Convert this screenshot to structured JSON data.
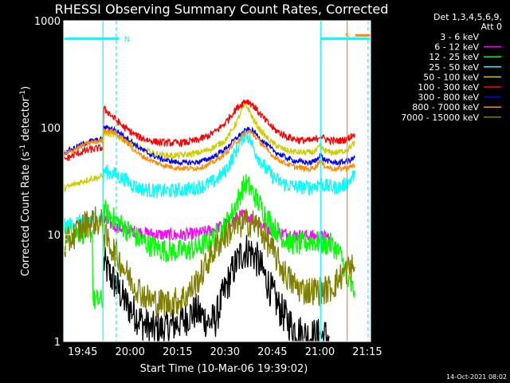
{
  "chart_data": {
    "type": "line",
    "title": "RHESSI Observing Summary Count Rates, Corrected",
    "xlabel": "Start Time (10-Mar-06 19:39:02)",
    "ylabel_parts": [
      "Corrected Count Rate (s",
      "-1",
      " detector",
      "-1",
      ")"
    ],
    "x_ticks": [
      "19:45",
      "20:00",
      "20:15",
      "20:30",
      "20:45",
      "21:00",
      "21:15"
    ],
    "y_ticks": [
      "1",
      "10",
      "100",
      "1000"
    ],
    "ylim": [
      1,
      1000
    ],
    "yscale": "log",
    "xlim_minutes": [
      0,
      97
    ],
    "x_tick_minutes": [
      5.97,
      20.97,
      35.97,
      50.97,
      65.97,
      80.97,
      95.97
    ],
    "timestamp": "14-Oct-2021 08:02",
    "legend": {
      "header": [
        "Det 1,3,4,5,6,9,",
        "Att 0"
      ],
      "entries": [
        {
          "label": "3 - 6 keV",
          "color": "#000000"
        },
        {
          "label": "6 - 12 keV",
          "color": "#ff00ff"
        },
        {
          "label": "12 - 25 keV",
          "color": "#00ff00"
        },
        {
          "label": "25 - 50 keV",
          "color": "#00ffff"
        },
        {
          "label": "50 - 100 keV",
          "color": "#cccc00"
        },
        {
          "label": "100 - 300 keV",
          "color": "#ff0000"
        },
        {
          "label": "300 - 800 keV",
          "color": "#0000ff"
        },
        {
          "label": "800 - 7000 keV",
          "color": "#ff8c00"
        },
        {
          "label": "7000 - 15000 keV",
          "color": "#808000"
        }
      ]
    },
    "flags": [
      {
        "label": "N",
        "color": "#00ffff",
        "start": 0,
        "end": 17.5,
        "level": 680
      },
      {
        "label": "S",
        "color": "#ff8c00",
        "start": 92.2,
        "end": 97,
        "level": 730
      },
      {
        "label": "",
        "color": "#00ffff",
        "start": 81.2,
        "end": 97,
        "level": 680
      }
    ],
    "vlines": [
      {
        "x": 0,
        "color": "#00ffff",
        "dashed": false
      },
      {
        "x": 12.4,
        "color": "#00ffff",
        "dashed": false
      },
      {
        "x": 16.6,
        "color": "#00ffff",
        "dashed": true
      },
      {
        "x": 81.2,
        "color": "#00ffff",
        "dashed": false
      },
      {
        "x": 89.6,
        "color": "#ff8c00",
        "dashed": false
      },
      {
        "x": 96.2,
        "color": "#00ffff",
        "dashed": true
      }
    ],
    "series": [
      {
        "name": "3 - 6 keV",
        "color": "#000000",
        "x": [
          12.6,
          14,
          16,
          18,
          20,
          22,
          24,
          26,
          28,
          30,
          32,
          34,
          36,
          38,
          40,
          42,
          44,
          46,
          48,
          50,
          52,
          54,
          56,
          58,
          60,
          62,
          64,
          66,
          68,
          70,
          72,
          74,
          76,
          78,
          80,
          82,
          84
        ],
        "y": [
          5.5,
          4.5,
          3.6,
          2.8,
          2.2,
          1.9,
          1.6,
          1.4,
          1.3,
          1.3,
          1.3,
          1.4,
          1.5,
          1.6,
          1.8,
          1.9,
          1.7,
          1.5,
          1.6,
          2.5,
          3.6,
          5,
          6.5,
          7.2,
          6.6,
          5.2,
          3.8,
          2.8,
          2.1,
          1.7,
          1.4,
          1.25,
          1.15,
          1.12,
          1.12,
          1.12,
          1.12
        ],
        "noise": 0.35
      },
      {
        "name": "6 - 12 keV",
        "color": "#ff00ff",
        "x": [
          12.6,
          15,
          18,
          21,
          24,
          27,
          30,
          33,
          36,
          39,
          42,
          45,
          48,
          51,
          54,
          56,
          57,
          58,
          60,
          63,
          66,
          69,
          72,
          75,
          78,
          81,
          84
        ],
        "y": [
          13.5,
          12.5,
          11.5,
          10.8,
          10.5,
          10.2,
          10,
          9.9,
          9.9,
          10,
          10.2,
          10.6,
          11.3,
          12.5,
          14,
          15,
          15.3,
          15,
          13.8,
          12.2,
          11,
          10.3,
          10,
          9.8,
          9.7,
          9.6,
          9.5
        ],
        "noise": 0.12
      },
      {
        "name": "12 - 25 keV",
        "color": "#00ff00",
        "x": [
          0,
          9,
          9.3,
          10,
          11,
          12.4,
          12.6,
          14,
          16,
          18,
          20,
          22,
          24,
          27,
          30,
          33,
          36,
          39,
          42,
          45,
          48,
          51,
          53,
          55,
          56.5,
          57.5,
          58.5,
          60,
          62,
          64,
          66,
          68,
          70,
          72,
          74,
          76,
          78,
          80,
          82,
          84,
          86,
          88,
          89,
          90,
          91,
          92
        ],
        "y": [
          10.5,
          10.5,
          2.4,
          2.4,
          2.4,
          2.4,
          17,
          15.5,
          14,
          12.5,
          11,
          10,
          9,
          8,
          7.4,
          7,
          7,
          7.1,
          7.5,
          8.2,
          9.5,
          12,
          15.5,
          21,
          27,
          30,
          28,
          24,
          19,
          15.2,
          12.2,
          10.2,
          9,
          8.3,
          8,
          8.2,
          8.8,
          8.5,
          8.2,
          8.2,
          7.5,
          6,
          4.5,
          3.5,
          3.2,
          3
        ],
        "noise": 0.22
      },
      {
        "name": "25 - 50 keV",
        "color": "#00ffff",
        "x": [
          0,
          4,
          8,
          12.4,
          12.6,
          14,
          16,
          18,
          20,
          22,
          24,
          27,
          30,
          33,
          36,
          39,
          42,
          45,
          48,
          51,
          53,
          55,
          56.5,
          57.5,
          58.5,
          60,
          62,
          64,
          66,
          68,
          70,
          72,
          74,
          76,
          78,
          80,
          81,
          82,
          84,
          86,
          88,
          90,
          92
        ],
        "y": [
          12,
          13,
          14,
          14.5,
          40,
          38,
          37,
          34,
          32,
          29,
          27,
          26,
          25.5,
          25.5,
          26,
          26.5,
          27.5,
          29,
          32,
          39,
          50,
          65,
          80,
          88,
          82,
          64,
          50,
          41,
          35,
          31.5,
          29.5,
          28.5,
          28,
          27.5,
          27.5,
          29,
          31,
          29,
          28,
          27.5,
          28.5,
          31,
          37
        ],
        "noise": 0.14
      },
      {
        "name": "50 - 100 keV",
        "color": "#cccc00",
        "x": [
          0,
          4,
          8,
          12.4,
          12.6,
          14,
          16,
          18,
          20,
          22,
          24,
          27,
          30,
          33,
          36,
          39,
          42,
          45,
          48,
          51,
          53,
          55,
          56.5,
          57.5,
          58.5,
          60,
          62,
          64,
          66,
          68,
          70,
          72,
          74,
          76,
          78,
          80,
          81,
          82,
          84,
          86,
          88,
          90,
          92
        ],
        "y": [
          27,
          30,
          33,
          35,
          88,
          88,
          85,
          80,
          75,
          69,
          64,
          59,
          56,
          55,
          55,
          56,
          58,
          61,
          67,
          76,
          92,
          118,
          150,
          165,
          148,
          118,
          96,
          82,
          72,
          66,
          62,
          60,
          59,
          58.5,
          58.5,
          61,
          67,
          62,
          59,
          58.5,
          60,
          64,
          72
        ],
        "noise": 0.06
      },
      {
        "name": "100 - 300 keV",
        "color": "#ff0000",
        "x": [
          0,
          4,
          8,
          12.4,
          12.6,
          14,
          16,
          18,
          20,
          22,
          24,
          27,
          30,
          33,
          36,
          39,
          42,
          45,
          48,
          51,
          53,
          55,
          57,
          58,
          59,
          60,
          62,
          64,
          66,
          68,
          70,
          72,
          74,
          76,
          78,
          80,
          81,
          82,
          84,
          86,
          88,
          90,
          92
        ],
        "y": [
          50,
          57,
          62,
          65,
          150,
          140,
          122,
          107,
          96,
          88,
          81,
          76,
          73,
          72,
          72,
          73,
          76,
          82,
          92,
          110,
          132,
          155,
          175,
          178,
          170,
          160,
          135,
          115,
          100,
          90,
          84,
          80,
          77,
          76,
          75.5,
          78,
          85,
          80,
          76,
          75,
          76,
          80,
          88
        ],
        "noise": 0.07
      },
      {
        "name": "300 - 800 keV",
        "color": "#0000ff",
        "x": [
          0,
          4,
          8,
          12.4,
          12.6,
          14,
          16,
          18,
          20,
          22,
          24,
          27,
          30,
          33,
          36,
          39,
          42,
          45,
          48,
          51,
          53,
          55,
          57,
          58,
          59,
          60,
          62,
          64,
          66,
          68,
          70,
          72,
          74,
          76,
          78,
          80,
          81,
          82,
          84,
          86,
          88,
          90,
          92
        ],
        "y": [
          58,
          66,
          74,
          78,
          100,
          100,
          96,
          88,
          80,
          72,
          64,
          57,
          52,
          49,
          47.5,
          47,
          47.5,
          50,
          55,
          63,
          72,
          82,
          92,
          96,
          95,
          92,
          80,
          70,
          62,
          57,
          53,
          50,
          48.5,
          47.5,
          47,
          50,
          57,
          51,
          48,
          47,
          47.5,
          49,
          52
        ],
        "noise": 0.05
      },
      {
        "name": "800 - 7000 keV",
        "color": "#ff8c00",
        "x": [
          0,
          4,
          8,
          12.4,
          12.6,
          14,
          16,
          18,
          20,
          22,
          24,
          27,
          30,
          33,
          36,
          39,
          42,
          45,
          48,
          51,
          53,
          55,
          57,
          58,
          59,
          60,
          62,
          64,
          66,
          68,
          70,
          72,
          74,
          76,
          78,
          80,
          81,
          82,
          84,
          86,
          88,
          90,
          92
        ],
        "y": [
          55,
          64,
          72,
          76,
          95,
          94,
          90,
          82,
          72,
          63,
          56,
          50,
          46,
          43.5,
          42,
          41.5,
          42,
          44,
          49,
          57,
          66,
          76,
          87,
          91,
          90,
          86,
          74,
          63,
          55,
          50,
          46.5,
          44,
          42.5,
          41.5,
          41,
          44,
          50,
          45,
          42,
          41,
          41.5,
          42.5,
          44.5
        ],
        "noise": 0.05
      },
      {
        "name": "7000 - 15000 keV",
        "color": "#808000",
        "x": [
          0,
          2,
          4,
          6,
          8,
          10,
          12.4,
          12.6,
          14,
          16,
          18,
          20,
          22,
          24,
          26,
          28,
          30,
          32,
          34,
          36,
          38,
          40,
          42,
          44,
          46,
          48,
          50,
          52,
          54,
          56,
          58,
          60,
          62,
          64,
          66,
          68,
          70,
          72,
          74,
          76,
          78,
          80,
          82,
          84,
          86,
          88,
          90,
          92
        ],
        "y": [
          7.5,
          9,
          10.5,
          12,
          13,
          13.5,
          12.5,
          10,
          8.5,
          7,
          5.5,
          4.3,
          3.5,
          3,
          2.6,
          2.4,
          2.3,
          2.3,
          2.3,
          2.4,
          2.6,
          3,
          3.6,
          4.5,
          6,
          7.5,
          9,
          10.5,
          11.5,
          12.5,
          13,
          12.8,
          11.5,
          9,
          7,
          5.5,
          4.3,
          3.6,
          3.2,
          3,
          3,
          3,
          3,
          3.1,
          3.5,
          4.2,
          4.8,
          5
        ],
        "noise": 0.28
      }
    ]
  }
}
